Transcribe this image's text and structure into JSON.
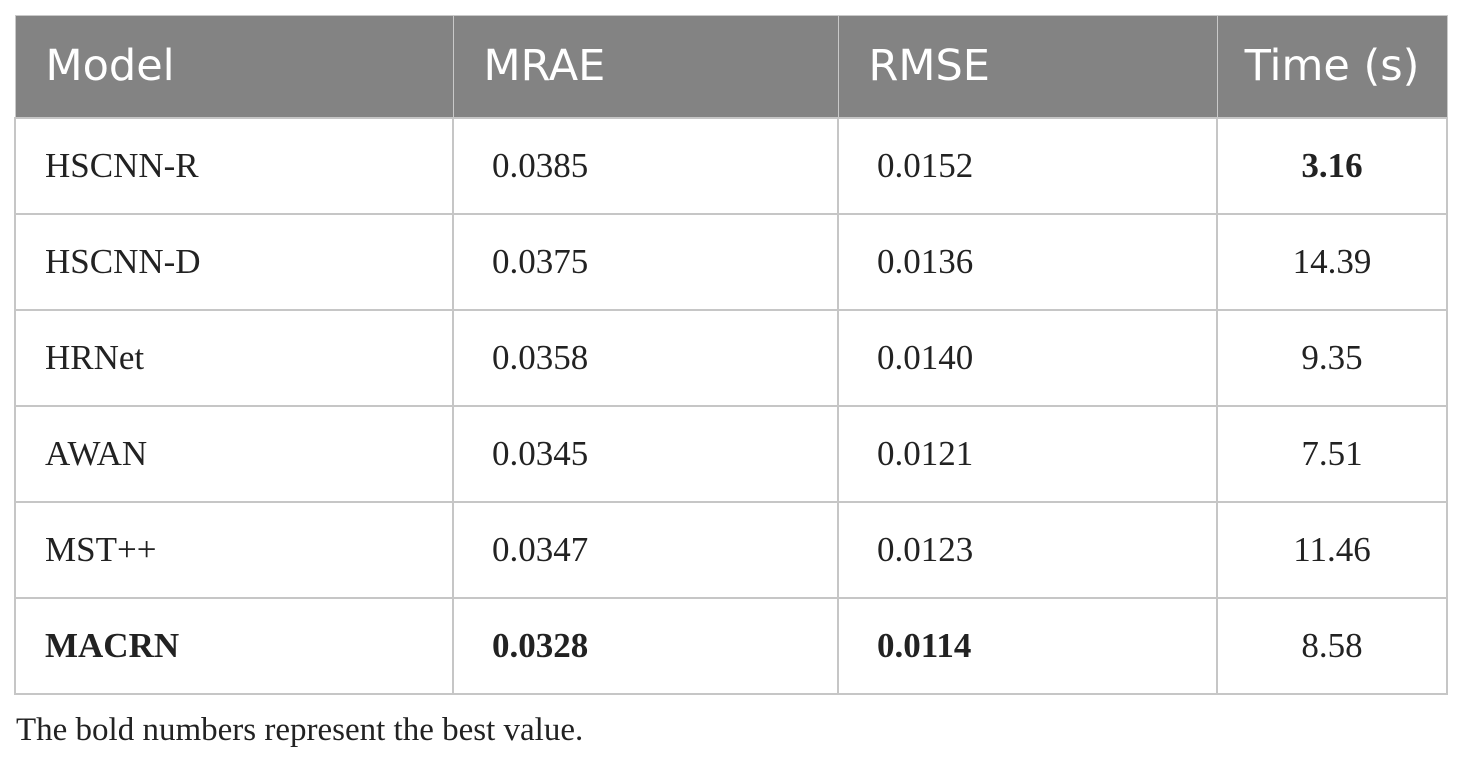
{
  "table": {
    "headers": [
      "Model",
      "MRAE",
      "RMSE",
      "Time (s)"
    ],
    "rows": [
      {
        "model": "HSCNN-R",
        "mrae": "0.0385",
        "rmse": "0.0152",
        "time": "3.16"
      },
      {
        "model": "HSCNN-D",
        "mrae": "0.0375",
        "rmse": "0.0136",
        "time": "14.39"
      },
      {
        "model": "HRNet",
        "mrae": "0.0358",
        "rmse": "0.0140",
        "time": "9.35"
      },
      {
        "model": "AWAN",
        "mrae": "0.0345",
        "rmse": "0.0121",
        "time": "7.51"
      },
      {
        "model": "MST++",
        "mrae": "0.0347",
        "rmse": "0.0123",
        "time": "11.46"
      },
      {
        "model": "MACRN",
        "mrae": "0.0328",
        "rmse": "0.0114",
        "time": "8.58"
      }
    ],
    "bold_cells": [
      "HSCNN-R.time",
      "MACRN.model",
      "MACRN.mrae",
      "MACRN.rmse"
    ]
  },
  "footnote": "The bold numbers represent the best value.",
  "colors": {
    "header_background": "#838383",
    "header_text": "#ffffff",
    "grid_lines": "#c6c6c6",
    "body_text": "#222222"
  }
}
